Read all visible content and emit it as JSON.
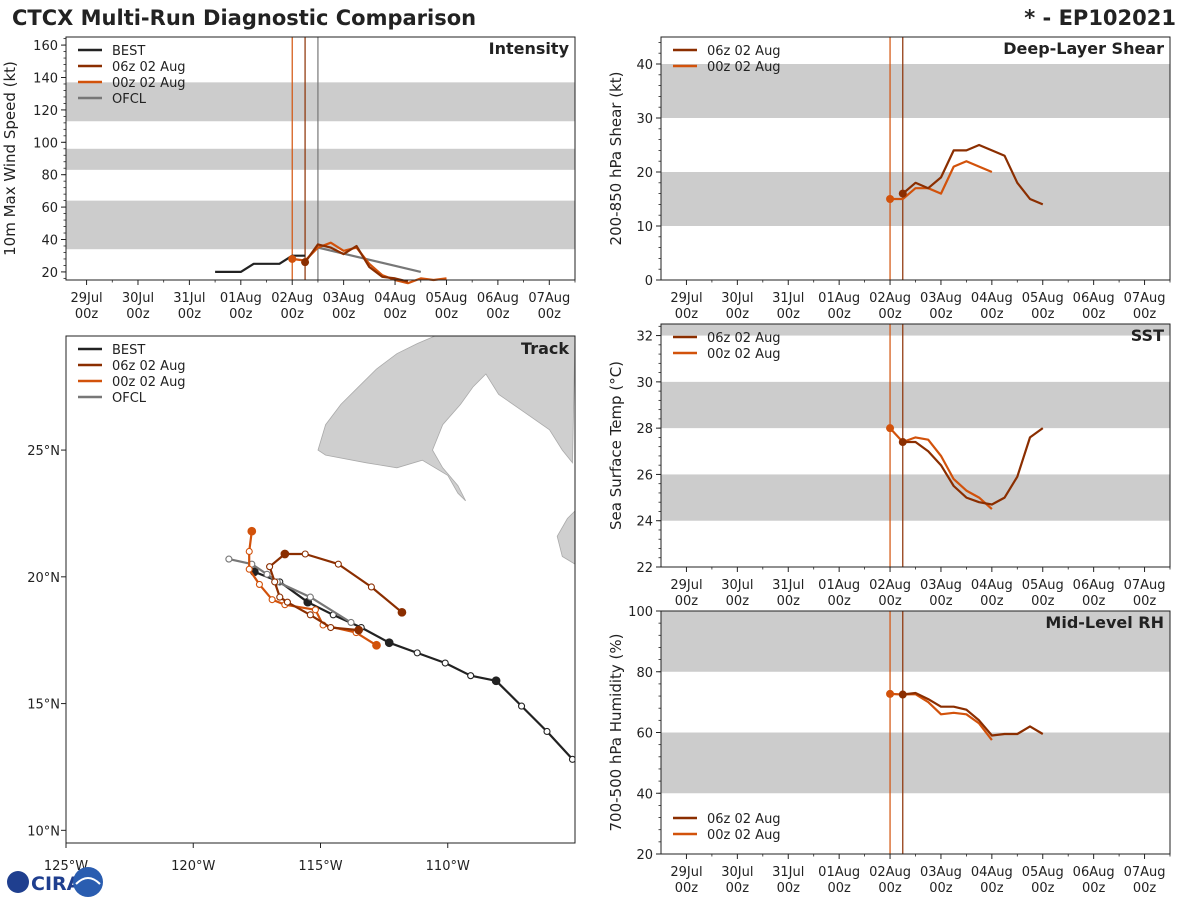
{
  "title_left": "CTCX Multi-Run Diagnostic Comparison",
  "title_right": "* - EP102021",
  "logo_text": "CIRA",
  "colors": {
    "best": "#222222",
    "run06": "#8b2e00",
    "run00": "#d2520b",
    "ofcl": "#777777",
    "band": "#cccccc",
    "land": "#cfcfcf",
    "coast": "#aaaaaa"
  },
  "legend_runs": [
    "06z 02 Aug",
    "00z 02 Aug"
  ],
  "legend_full": [
    "BEST",
    "06z 02 Aug",
    "00z 02 Aug",
    "OFCL"
  ],
  "chart_data": [
    {
      "id": "intensity",
      "type": "line",
      "title": "Intensity",
      "ylabel": "10m Max Wind Speed (kt)",
      "x_dates": [
        "29Jul",
        "30Jul",
        "31Jul",
        "01Aug",
        "02Aug",
        "03Aug",
        "04Aug",
        "05Aug",
        "06Aug",
        "07Aug"
      ],
      "x_hours": "00z",
      "xlim": [
        -0.4,
        9.5
      ],
      "ylim": [
        15,
        165
      ],
      "yticks": [
        20,
        40,
        60,
        80,
        100,
        120,
        140,
        160
      ],
      "bands": [
        [
          34,
          64
        ],
        [
          83,
          96
        ],
        [
          113,
          137
        ]
      ],
      "vlines": [
        {
          "x": 4.0,
          "series": "run00"
        },
        {
          "x": 4.25,
          "series": "run06"
        },
        {
          "x": 4.5,
          "series": "ofcl"
        }
      ],
      "series": [
        {
          "name": "BEST",
          "key": "best",
          "x": [
            2.5,
            2.75,
            3.0,
            3.25,
            3.5,
            3.75,
            4.0,
            4.25
          ],
          "y": [
            20,
            20,
            20,
            25,
            25,
            25,
            30,
            30
          ]
        },
        {
          "name": "OFCL",
          "key": "ofcl",
          "x": [
            4.5,
            6.5
          ],
          "y": [
            35,
            20
          ]
        },
        {
          "name": "00z 02 Aug",
          "key": "run00",
          "x": [
            4.0,
            4.25,
            4.5,
            4.75,
            5.0,
            5.25,
            5.5,
            5.75,
            6.0,
            6.25,
            6.5,
            6.75,
            7.0
          ],
          "y": [
            28,
            27,
            35,
            38,
            33,
            35,
            25,
            18,
            15,
            13,
            16,
            15,
            16
          ],
          "marker": [
            4.0,
            28
          ]
        },
        {
          "name": "06z 02 Aug",
          "key": "run06",
          "x": [
            4.25,
            4.5,
            4.75,
            5.0,
            5.25,
            5.5,
            5.75,
            6.0,
            6.25
          ],
          "y": [
            26,
            37,
            35,
            31,
            36,
            23,
            17,
            16,
            14
          ],
          "marker": [
            4.25,
            26
          ]
        }
      ]
    },
    {
      "id": "shear",
      "type": "line",
      "title": "Deep-Layer Shear",
      "ylabel": "200-850 hPa Shear (kt)",
      "x_dates": [
        "29Jul",
        "30Jul",
        "31Jul",
        "01Aug",
        "02Aug",
        "03Aug",
        "04Aug",
        "05Aug",
        "06Aug",
        "07Aug"
      ],
      "x_hours": "00z",
      "xlim": [
        -0.5,
        9.5
      ],
      "ylim": [
        0,
        45
      ],
      "yticks": [
        0,
        10,
        20,
        30,
        40
      ],
      "bands": [
        [
          10,
          20
        ],
        [
          30,
          40
        ]
      ],
      "vlines": [
        {
          "x": 4.0,
          "series": "run00"
        },
        {
          "x": 4.25,
          "series": "run06"
        }
      ],
      "series": [
        {
          "name": "00z 02 Aug",
          "key": "run00",
          "x": [
            4.0,
            4.25,
            4.5,
            4.75,
            5.0,
            5.25,
            5.5,
            5.75,
            6.0
          ],
          "y": [
            15,
            15,
            17,
            17,
            16,
            21,
            22,
            21,
            20
          ],
          "marker": [
            4.0,
            15
          ]
        },
        {
          "name": "06z 02 Aug",
          "key": "run06",
          "x": [
            4.25,
            4.5,
            4.75,
            5.0,
            5.25,
            5.5,
            5.75,
            6.0,
            6.25,
            6.5,
            6.75,
            7.0
          ],
          "y": [
            16,
            18,
            17,
            19,
            24,
            24,
            25,
            24,
            23,
            18,
            15,
            14
          ],
          "marker": [
            4.25,
            16
          ]
        }
      ]
    },
    {
      "id": "sst",
      "type": "line",
      "title": "SST",
      "ylabel": "Sea Surface Temp (°C)",
      "x_dates": [
        "29Jul",
        "30Jul",
        "31Jul",
        "01Aug",
        "02Aug",
        "03Aug",
        "04Aug",
        "05Aug",
        "06Aug",
        "07Aug"
      ],
      "x_hours": "00z",
      "xlim": [
        -0.5,
        9.5
      ],
      "ylim": [
        22,
        32.5
      ],
      "yticks": [
        22,
        24,
        26,
        28,
        30,
        32
      ],
      "bands": [
        [
          24,
          26
        ],
        [
          28,
          30
        ],
        [
          32,
          32.5
        ]
      ],
      "vlines": [
        {
          "x": 4.0,
          "series": "run00"
        },
        {
          "x": 4.25,
          "series": "run06"
        }
      ],
      "series": [
        {
          "name": "00z 02 Aug",
          "key": "run00",
          "x": [
            4.0,
            4.25,
            4.5,
            4.75,
            5.0,
            5.25,
            5.5,
            5.75,
            6.0
          ],
          "y": [
            28.0,
            27.4,
            27.6,
            27.5,
            26.8,
            25.8,
            25.3,
            25.0,
            24.5
          ],
          "marker": [
            4.0,
            28.0
          ]
        },
        {
          "name": "06z 02 Aug",
          "key": "run06",
          "x": [
            4.25,
            4.5,
            4.75,
            5.0,
            5.25,
            5.5,
            5.75,
            6.0,
            6.25,
            6.5,
            6.75,
            7.0
          ],
          "y": [
            27.4,
            27.4,
            27.0,
            26.4,
            25.5,
            25.0,
            24.8,
            24.7,
            25.0,
            25.9,
            27.6,
            28.0
          ],
          "marker": [
            4.25,
            27.4
          ]
        }
      ]
    },
    {
      "id": "rh",
      "type": "line",
      "title": "Mid-Level RH",
      "ylabel": "700-500 hPa Humidity (%)",
      "x_dates": [
        "29Jul",
        "30Jul",
        "31Jul",
        "01Aug",
        "02Aug",
        "03Aug",
        "04Aug",
        "05Aug",
        "06Aug",
        "07Aug"
      ],
      "x_hours": "00z",
      "xlim": [
        -0.5,
        9.5
      ],
      "ylim": [
        20,
        100
      ],
      "yticks": [
        20,
        40,
        60,
        80,
        100
      ],
      "bands": [
        [
          40,
          60
        ],
        [
          80,
          100
        ]
      ],
      "vlines": [
        {
          "x": 4.0,
          "series": "run00"
        },
        {
          "x": 4.25,
          "series": "run06"
        }
      ],
      "series": [
        {
          "name": "00z 02 Aug",
          "key": "run00",
          "x": [
            4.0,
            4.25,
            4.5,
            4.75,
            5.0,
            5.25,
            5.5,
            5.75,
            6.0
          ],
          "y": [
            72.7,
            72.5,
            72.6,
            70.0,
            66.0,
            66.5,
            66.0,
            63.0,
            57.5
          ],
          "marker": [
            4.0,
            72.7
          ]
        },
        {
          "name": "06z 02 Aug",
          "key": "run06",
          "x": [
            4.25,
            4.5,
            4.75,
            5.0,
            5.25,
            5.5,
            5.75,
            6.0,
            6.25,
            6.5,
            6.75,
            7.0
          ],
          "y": [
            72.5,
            73.0,
            71.0,
            68.5,
            68.5,
            67.5,
            64.0,
            59.0,
            59.5,
            59.5,
            62.0,
            59.5
          ],
          "marker": [
            4.25,
            72.5
          ]
        }
      ]
    },
    {
      "id": "track",
      "type": "scatter",
      "title": "Track",
      "xticks": [
        {
          "v": -125,
          "label": "125°W"
        },
        {
          "v": -120,
          "label": "120°W"
        },
        {
          "v": -115,
          "label": "115°W"
        },
        {
          "v": -110,
          "label": "110°W"
        }
      ],
      "yticks": [
        {
          "v": 10,
          "label": "10°N"
        },
        {
          "v": 15,
          "label": "15°N"
        },
        {
          "v": 20,
          "label": "20°N"
        },
        {
          "v": 25,
          "label": "25°N"
        }
      ],
      "xlim": [
        -125,
        -105
      ],
      "ylim": [
        9.5,
        29.5
      ],
      "series": [
        {
          "name": "BEST",
          "key": "best",
          "lon": [
            -105.1,
            -106.1,
            -107.1,
            -108.1,
            -109.1,
            -110.1,
            -111.2,
            -112.3,
            -113.4,
            -114.5,
            -115.5,
            -116.6,
            -117.6
          ],
          "lat": [
            12.8,
            13.9,
            14.9,
            15.9,
            16.1,
            16.6,
            17.0,
            17.4,
            18.0,
            18.5,
            19.0,
            19.8,
            20.2
          ],
          "filled": [
            false,
            false,
            false,
            true,
            false,
            false,
            false,
            true,
            false,
            false,
            true,
            false,
            true
          ]
        },
        {
          "name": "OFCL",
          "key": "ofcl",
          "lon": [
            -113.8,
            -115.4,
            -116.7,
            -117.1,
            -117.7,
            -118.6
          ],
          "lat": [
            18.2,
            19.2,
            19.8,
            20.1,
            20.5,
            20.7
          ],
          "filled": [
            false,
            false,
            false,
            false,
            false,
            false
          ]
        },
        {
          "name": "00z 02 Aug",
          "key": "run00",
          "lon": [
            -112.8,
            -113.6,
            -114.9,
            -115.2,
            -116.4,
            -116.9,
            -117.4,
            -117.8,
            -117.8,
            -117.7
          ],
          "lat": [
            17.3,
            17.8,
            18.1,
            18.7,
            18.9,
            19.1,
            19.7,
            20.3,
            21.0,
            21.8
          ],
          "filled": [
            true,
            false,
            false,
            false,
            false,
            false,
            false,
            false,
            false,
            true
          ]
        },
        {
          "name": "06z 02 Aug",
          "key": "run06",
          "lon": [
            -113.5,
            -114.6,
            -115.4,
            -116.3,
            -116.6,
            -116.8,
            -117.0,
            -116.4,
            -115.6,
            -114.3,
            -113.0,
            -111.8
          ],
          "lat": [
            17.9,
            18.0,
            18.5,
            19.0,
            19.2,
            19.8,
            20.4,
            20.9,
            20.9,
            20.5,
            19.6,
            18.6
          ],
          "filled": [
            true,
            false,
            false,
            false,
            false,
            false,
            false,
            true,
            false,
            false,
            false,
            true
          ]
        }
      ],
      "land": [
        {
          "lon": [
            -105,
            -107,
            -109,
            -110.5,
            -111.2,
            -112,
            -112.8,
            -113.5,
            -114.2,
            -114.8,
            -115.1,
            -114.8,
            -113.2,
            -112,
            -111,
            -110,
            -109.6,
            -109.3,
            -109.6,
            -110.2,
            -110.6,
            -110.2,
            -109.5,
            -109,
            -108.5,
            -108,
            -107,
            -106,
            -105.5,
            -105.1
          ],
          "lat": [
            29.5,
            29.5,
            29.5,
            29.5,
            29.2,
            28.8,
            28.2,
            27.5,
            26.8,
            26.0,
            25.0,
            24.8,
            24.5,
            24.3,
            24.6,
            24.0,
            23.3,
            23.0,
            23.6,
            24.3,
            25.0,
            26.0,
            26.8,
            27.5,
            28.0,
            27.2,
            26.5,
            25.8,
            25.0,
            24.5
          ]
        },
        {
          "lon": [
            -105,
            -105.5,
            -105.7,
            -105.3,
            -105
          ],
          "lat": [
            20.5,
            20.8,
            21.6,
            22.3,
            22.6
          ]
        }
      ]
    }
  ]
}
